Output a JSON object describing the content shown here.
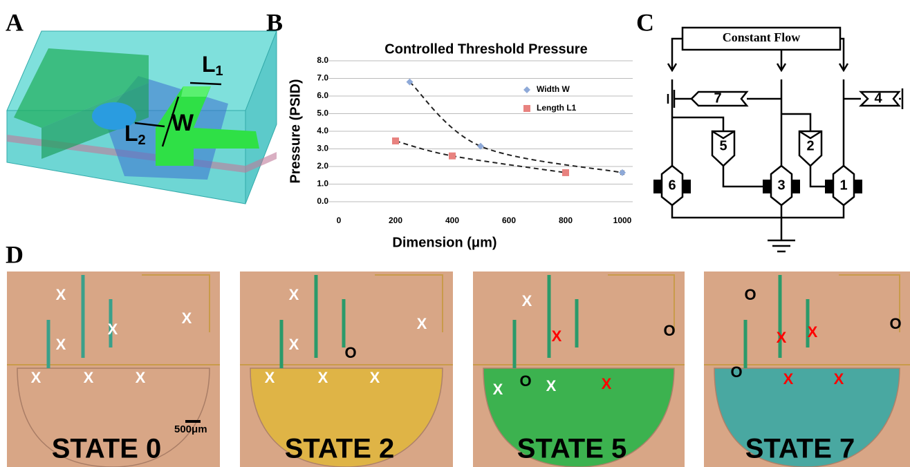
{
  "panel_labels": [
    "A",
    "B",
    "C",
    "D"
  ],
  "panel_a": {
    "l1": {
      "text": "L",
      "sub": "1"
    },
    "l2": {
      "text": "L",
      "sub": "2"
    },
    "w": "W"
  },
  "chart_data": {
    "type": "scatter",
    "title": "Controlled Threshold Pressure",
    "x_label": "Dimension (μm)",
    "y_label": "Pressure (PSID)",
    "xlim": [
      0,
      1000
    ],
    "xticks": [
      0,
      200,
      400,
      600,
      800,
      1000
    ],
    "ylim": [
      0,
      8
    ],
    "yticks": [
      {
        "value": 0,
        "label": "0.0"
      },
      {
        "value": 1,
        "label": "1.0"
      },
      {
        "value": 2,
        "label": "2.0"
      },
      {
        "value": 3,
        "label": "3.0"
      },
      {
        "value": 4,
        "label": "4.0"
      },
      {
        "value": 5,
        "label": "5.0"
      },
      {
        "value": 6,
        "label": "6.0"
      },
      {
        "value": 7,
        "label": "7.0"
      },
      {
        "value": 8,
        "label": "8.0"
      }
    ],
    "grid": true,
    "legend": "upper right",
    "series": [
      {
        "name": "Width W",
        "color": "#8ea9d8",
        "marker": "diamond",
        "x": [
          250,
          500,
          1000
        ],
        "values": [
          6.8,
          3.15,
          1.65
        ],
        "errors": [
          0.05,
          0.05,
          0.1
        ]
      },
      {
        "name": "Length L1",
        "color": "#e8827f",
        "marker": "square",
        "x": [
          200,
          400,
          800
        ],
        "values": [
          3.45,
          2.6,
          1.65
        ],
        "errors": [
          0.1,
          0.12,
          0.08
        ]
      }
    ]
  },
  "panel_c": {
    "source": "Constant Flow",
    "valves": [
      "1",
      "2",
      "3",
      "4",
      "5",
      "6",
      "7"
    ]
  },
  "panel_d": {
    "scale_bar": "500μm",
    "states": [
      {
        "label": "STATE 0",
        "marks": [
          {
            "text": "X",
            "color": "white"
          },
          {
            "text": "X",
            "color": "white"
          },
          {
            "text": "X",
            "color": "white"
          },
          {
            "text": "X",
            "color": "white"
          },
          {
            "text": "X",
            "color": "white"
          },
          {
            "text": "X",
            "color": "white"
          },
          {
            "text": "X",
            "color": "white"
          }
        ]
      },
      {
        "label": "STATE 2",
        "marks": [
          {
            "text": "X",
            "color": "white"
          },
          {
            "text": "X",
            "color": "white"
          },
          {
            "text": "X",
            "color": "white"
          },
          {
            "text": "X",
            "color": "white"
          },
          {
            "text": "X",
            "color": "white"
          },
          {
            "text": "X",
            "color": "white"
          },
          {
            "text": "O",
            "color": "black"
          }
        ]
      },
      {
        "label": "STATE 5",
        "marks": [
          {
            "text": "X",
            "color": "white"
          },
          {
            "text": "X",
            "color": "white"
          },
          {
            "text": "X",
            "color": "white"
          },
          {
            "text": "O",
            "color": "black"
          },
          {
            "text": "O",
            "color": "black"
          },
          {
            "text": "X",
            "color": "red"
          },
          {
            "text": "X",
            "color": "red"
          }
        ]
      },
      {
        "label": "STATE 7",
        "marks": [
          {
            "text": "O",
            "color": "black"
          },
          {
            "text": "O",
            "color": "black"
          },
          {
            "text": "O",
            "color": "black"
          },
          {
            "text": "X",
            "color": "red"
          },
          {
            "text": "X",
            "color": "red"
          },
          {
            "text": "X",
            "color": "red"
          },
          {
            "text": "X",
            "color": "red"
          }
        ]
      }
    ]
  }
}
